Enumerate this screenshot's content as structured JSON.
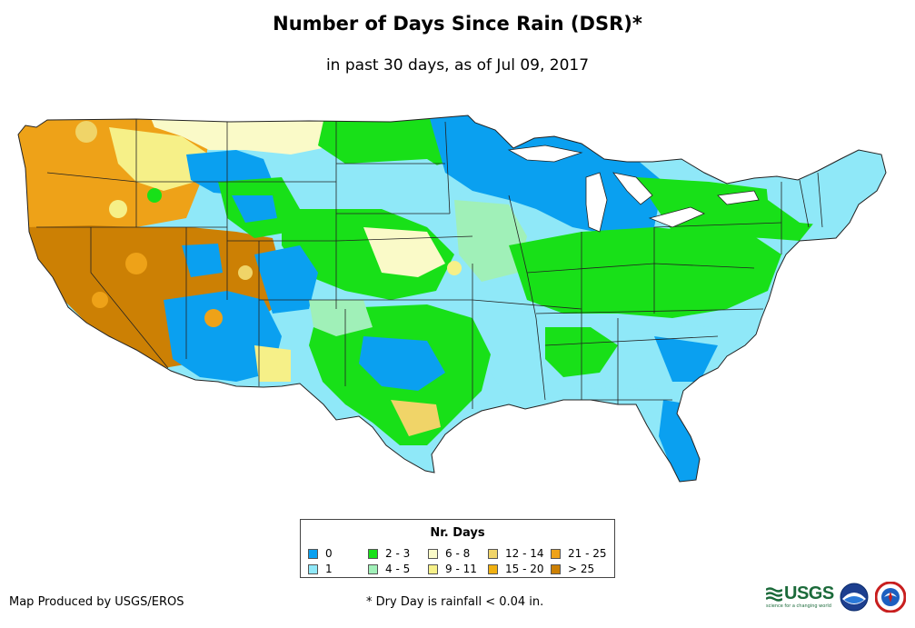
{
  "title": "Number of Days Since Rain (DSR)*",
  "subtitle": "in past 30 days, as of Jul 09, 2017",
  "legend": {
    "title": "Nr. Days",
    "items": [
      {
        "label": "0",
        "color": "#0aa0f0"
      },
      {
        "label": "1",
        "color": "#8fe8f8"
      },
      {
        "label": "2 - 3",
        "color": "#18e018"
      },
      {
        "label": "4 - 5",
        "color": "#a0f0b8"
      },
      {
        "label": "6 - 8",
        "color": "#fafac8"
      },
      {
        "label": "9 - 11",
        "color": "#f6f088"
      },
      {
        "label": "12 - 14",
        "color": "#f0d468"
      },
      {
        "label": "15 - 20",
        "color": "#f0b010"
      },
      {
        "label": "21 - 25",
        "color": "#eea218"
      },
      {
        "label": "> 25",
        "color": "#cc8004"
      }
    ]
  },
  "footer": {
    "credit": "Map Produced by USGS/EROS",
    "note": "* Dry Day is rainfall < 0.04 in."
  },
  "logos": {
    "usgs": "USGS",
    "usgs_tagline": "science for a changing world",
    "noaa": "noaa-logo",
    "nws": "nws-logo"
  }
}
